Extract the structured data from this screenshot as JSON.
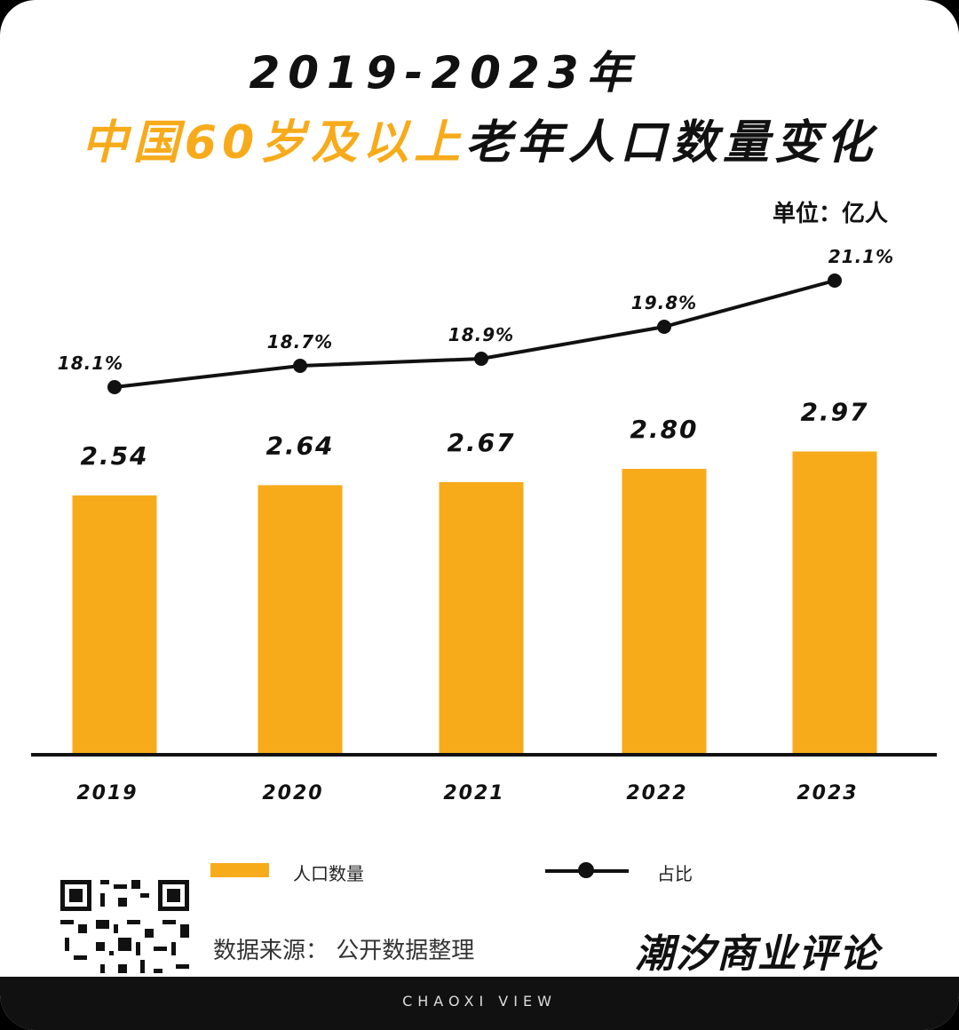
{
  "title_line1": "2019-2023年",
  "title_line2_accent": "中国60岁及以上",
  "title_line2_rest": "老年人口数量变化",
  "unit": "单位：亿人",
  "chart_data": {
    "type": "bar",
    "categories": [
      "2019",
      "2020",
      "2021",
      "2022",
      "2023"
    ],
    "series": [
      {
        "name": "人口数量",
        "type": "bar",
        "values": [
          2.54,
          2.64,
          2.67,
          2.8,
          2.97
        ],
        "labels": [
          "2.54",
          "2.64",
          "2.67",
          "2.80",
          "2.97"
        ],
        "color": "#F7AB1B"
      },
      {
        "name": "占比",
        "type": "line",
        "values": [
          18.1,
          18.7,
          18.9,
          19.8,
          21.1
        ],
        "labels": [
          "18.1%",
          "18.7%",
          "18.9%",
          "19.8%",
          "21.1%"
        ],
        "color": "#111111"
      }
    ],
    "legend": "bottom"
  },
  "legend": {
    "bar_label": "人口数量",
    "line_label": "占比"
  },
  "source": "数据来源：  公开数据整理",
  "brand": "潮汐商业评论",
  "footer": "CHAOXI VIEW"
}
